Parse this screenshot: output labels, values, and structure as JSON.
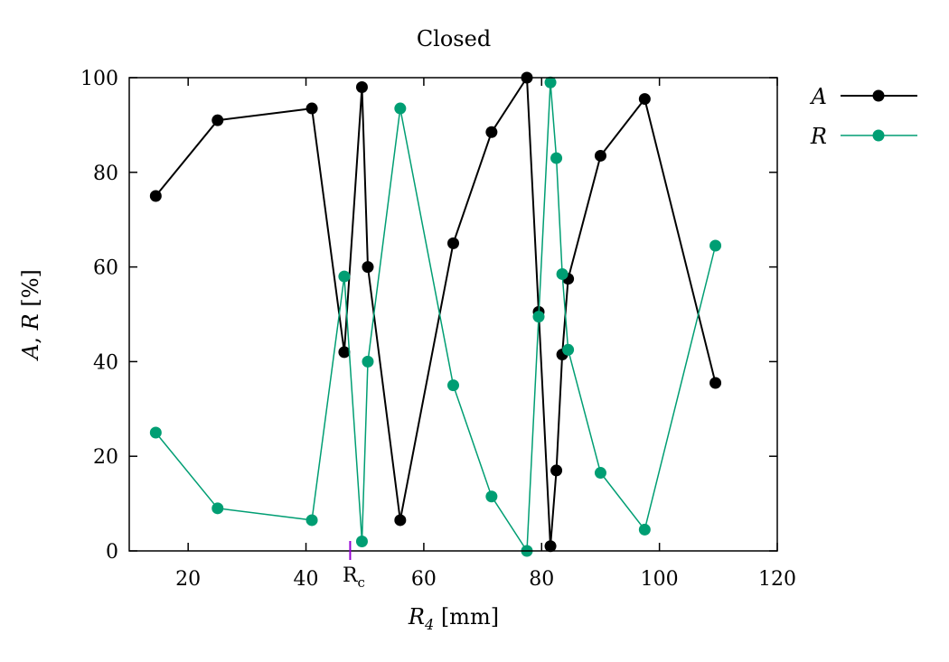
{
  "chart_data": {
    "type": "line",
    "title": "Closed",
    "xlabel_var": "R",
    "xlabel_sub": "4",
    "xlabel_unit": " [mm]",
    "ylabel_a": "A",
    "ylabel_sep": ", ",
    "ylabel_r": "R",
    "ylabel_unit": " [%]",
    "xlim": [
      10,
      120
    ],
    "ylim": [
      0,
      100
    ],
    "xticks": [
      20,
      40,
      60,
      80,
      100,
      120
    ],
    "yticks": [
      0,
      20,
      40,
      60,
      80,
      100
    ],
    "grid": false,
    "legend_position": "outside-right-top",
    "annotation": {
      "x": 47.5,
      "label_main": "R",
      "label_sub": "c",
      "color": "#9400d3"
    },
    "series": [
      {
        "name": "A",
        "color": "#000000",
        "x": [
          14.5,
          25,
          41,
          46.5,
          49.5,
          50.5,
          56,
          65,
          71.5,
          77.5,
          79.5,
          81.5,
          82.5,
          83.5,
          84.5,
          90,
          97.5,
          109.5
        ],
        "y": [
          75,
          91,
          93.5,
          42,
          98,
          60,
          6.5,
          65,
          88.5,
          100,
          50.5,
          1,
          17,
          41.5,
          57.5,
          83.5,
          95.5,
          35.5
        ]
      },
      {
        "name": "R",
        "color": "#009e73",
        "x": [
          14.5,
          25,
          41,
          46.5,
          49.5,
          50.5,
          56,
          65,
          71.5,
          77.5,
          79.5,
          81.5,
          82.5,
          83.5,
          84.5,
          90,
          97.5,
          109.5
        ],
        "y": [
          25,
          9,
          6.5,
          58,
          2,
          40,
          93.5,
          35,
          11.5,
          0,
          49.5,
          99,
          83,
          58.5,
          42.5,
          16.5,
          4.5,
          64.5
        ]
      }
    ]
  }
}
